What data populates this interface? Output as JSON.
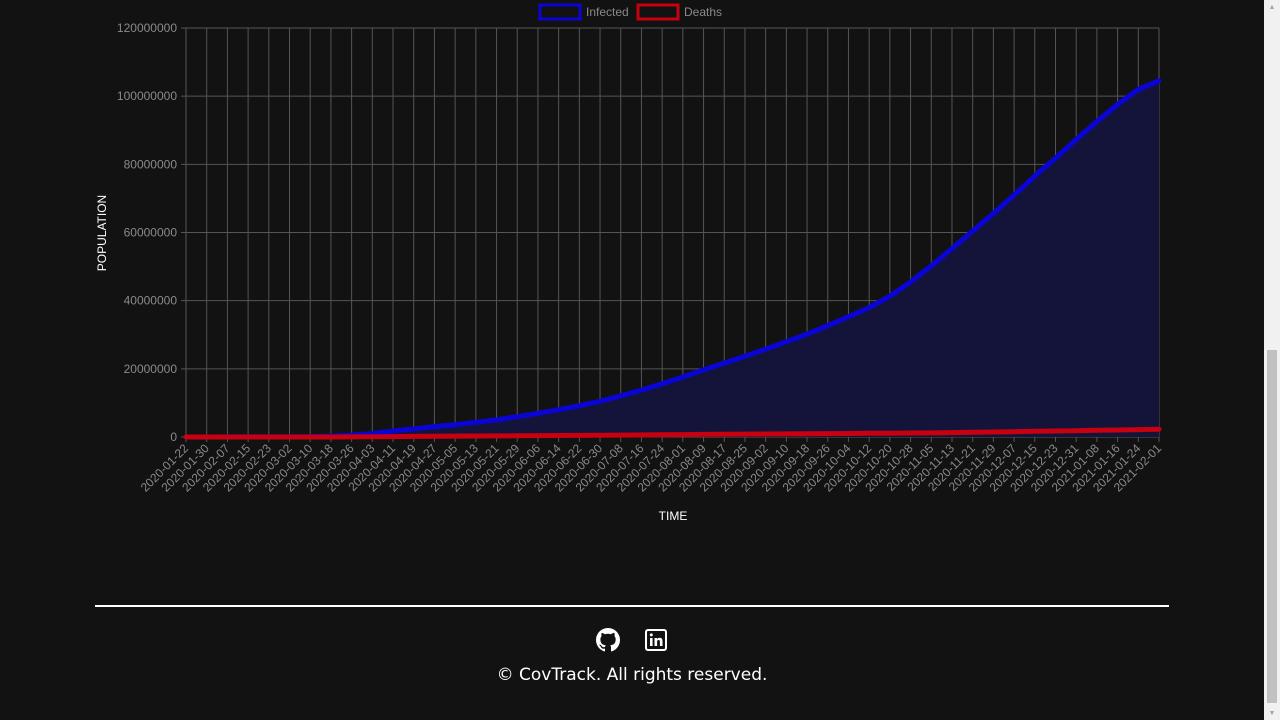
{
  "colors": {
    "background": "#121212",
    "infected": "#0a05d6",
    "deaths": "#c8000f",
    "grid": "#555555",
    "infected_fill": "#14143a"
  },
  "chart_data": {
    "type": "line",
    "title": "",
    "xlabel": "TIME",
    "ylabel": "POPULATION",
    "ylim": [
      0,
      120000000
    ],
    "yticks": [
      0,
      20000000,
      40000000,
      60000000,
      80000000,
      100000000,
      120000000
    ],
    "grid": true,
    "legend_position": "top-center",
    "x": [
      "2020-01-22",
      "2020-01-30",
      "2020-02-07",
      "2020-02-15",
      "2020-02-23",
      "2020-03-02",
      "2020-03-10",
      "2020-03-18",
      "2020-03-26",
      "2020-04-03",
      "2020-04-11",
      "2020-04-19",
      "2020-04-27",
      "2020-05-05",
      "2020-05-13",
      "2020-05-21",
      "2020-05-29",
      "2020-06-06",
      "2020-06-14",
      "2020-06-22",
      "2020-06-30",
      "2020-07-08",
      "2020-07-16",
      "2020-07-24",
      "2020-08-01",
      "2020-08-09",
      "2020-08-17",
      "2020-08-25",
      "2020-09-02",
      "2020-09-10",
      "2020-09-18",
      "2020-09-26",
      "2020-10-04",
      "2020-10-12",
      "2020-10-20",
      "2020-10-28",
      "2020-11-05",
      "2020-11-13",
      "2020-11-21",
      "2020-11-29",
      "2020-12-07",
      "2020-12-15",
      "2020-12-23",
      "2020-12-31",
      "2021-01-08",
      "2021-01-16",
      "2021-01-24",
      "2021-02-01"
    ],
    "series": [
      {
        "name": "Infected",
        "fill": true,
        "values": [
          0,
          10000,
          35000,
          70000,
          80000,
          90000,
          120000,
          250000,
          550000,
          1000000,
          1750000,
          2400000,
          3050000,
          3600000,
          4300000,
          5050000,
          5950000,
          6950000,
          8000000,
          9150000,
          10500000,
          12050000,
          13750000,
          15600000,
          17600000,
          19700000,
          21700000,
          23700000,
          25800000,
          27950000,
          30200000,
          32650000,
          35300000,
          38000000,
          41300000,
          45500000,
          50200000,
          55300000,
          60400000,
          65600000,
          71000000,
          76600000,
          81800000,
          87300000,
          92600000,
          97600000,
          102000000,
          104500000
        ]
      },
      {
        "name": "Deaths",
        "fill": false,
        "values": [
          0,
          200,
          700,
          1600,
          2500,
          3100,
          4300,
          9000,
          25000,
          70000,
          130000,
          185000,
          230000,
          270000,
          300000,
          330000,
          365000,
          400000,
          430000,
          470000,
          515000,
          560000,
          610000,
          660000,
          710000,
          760000,
          800000,
          840000,
          880000,
          920000,
          960000,
          995000,
          1035000,
          1075000,
          1110000,
          1160000,
          1210000,
          1280000,
          1370000,
          1460000,
          1560000,
          1660000,
          1760000,
          1850000,
          1960000,
          2060000,
          2160000,
          2250000
        ]
      }
    ]
  },
  "footer": {
    "github_icon": "github-icon",
    "linkedin_icon": "linkedin-icon",
    "copyright": "© CovTrack. All rights reserved."
  },
  "scrollbar": {
    "up_arrow": "▲",
    "down_arrow": "▼"
  }
}
